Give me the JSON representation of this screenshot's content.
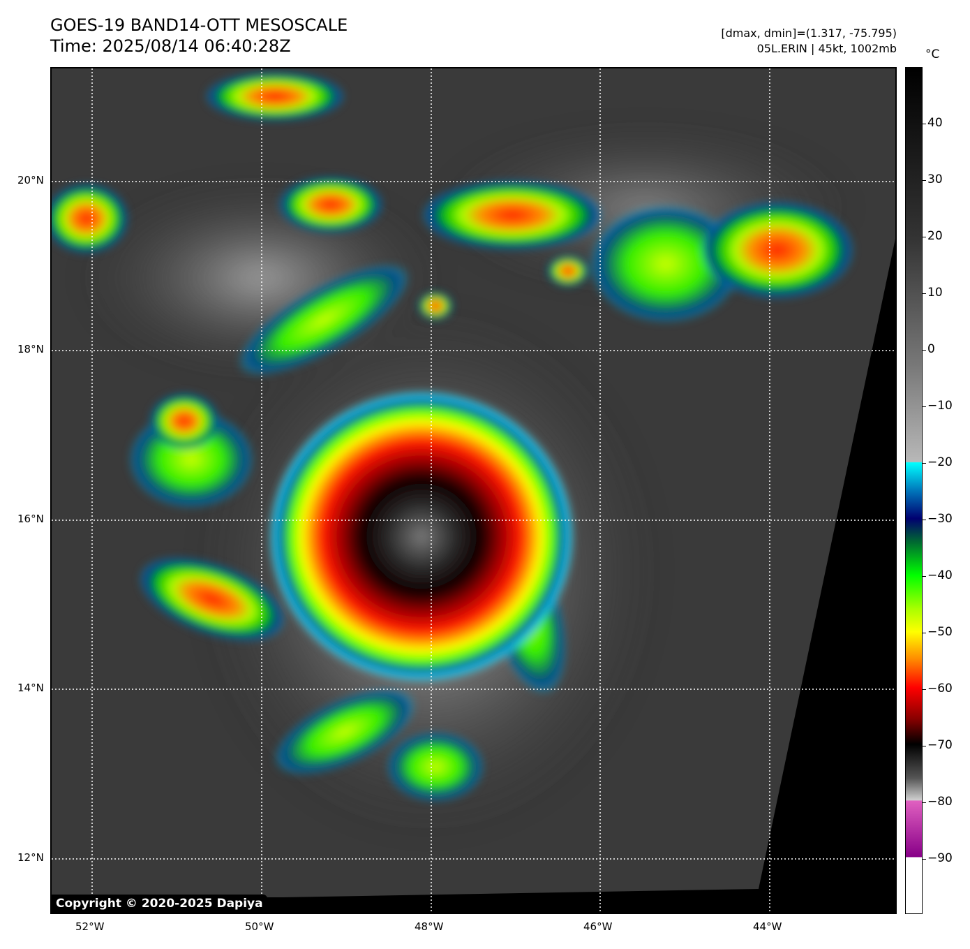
{
  "header": {
    "title": "GOES-19 BAND14-OTT MESOSCALE",
    "time": "Time: 2025/08/14 06:40:28Z",
    "dminmax": "[dmax, dmin]=(1.317, -75.795)",
    "storm": "05L.ERIN | 45kt, 1002mb"
  },
  "colorbar": {
    "unit": "°C",
    "ticks": [
      "40",
      "30",
      "20",
      "10",
      "0",
      "−10",
      "−20",
      "−30",
      "−40",
      "−50",
      "−60",
      "−70",
      "−80",
      "−90"
    ],
    "range": [
      -100,
      50
    ]
  },
  "axes": {
    "lon_labels": [
      "52°W",
      "50°W",
      "48°W",
      "46°W",
      "44°W"
    ],
    "lat_labels": [
      "20°N",
      "18°N",
      "16°N",
      "14°N",
      "12°N"
    ]
  },
  "copyright": "Copyright © 2020-2025 Dapiya"
}
